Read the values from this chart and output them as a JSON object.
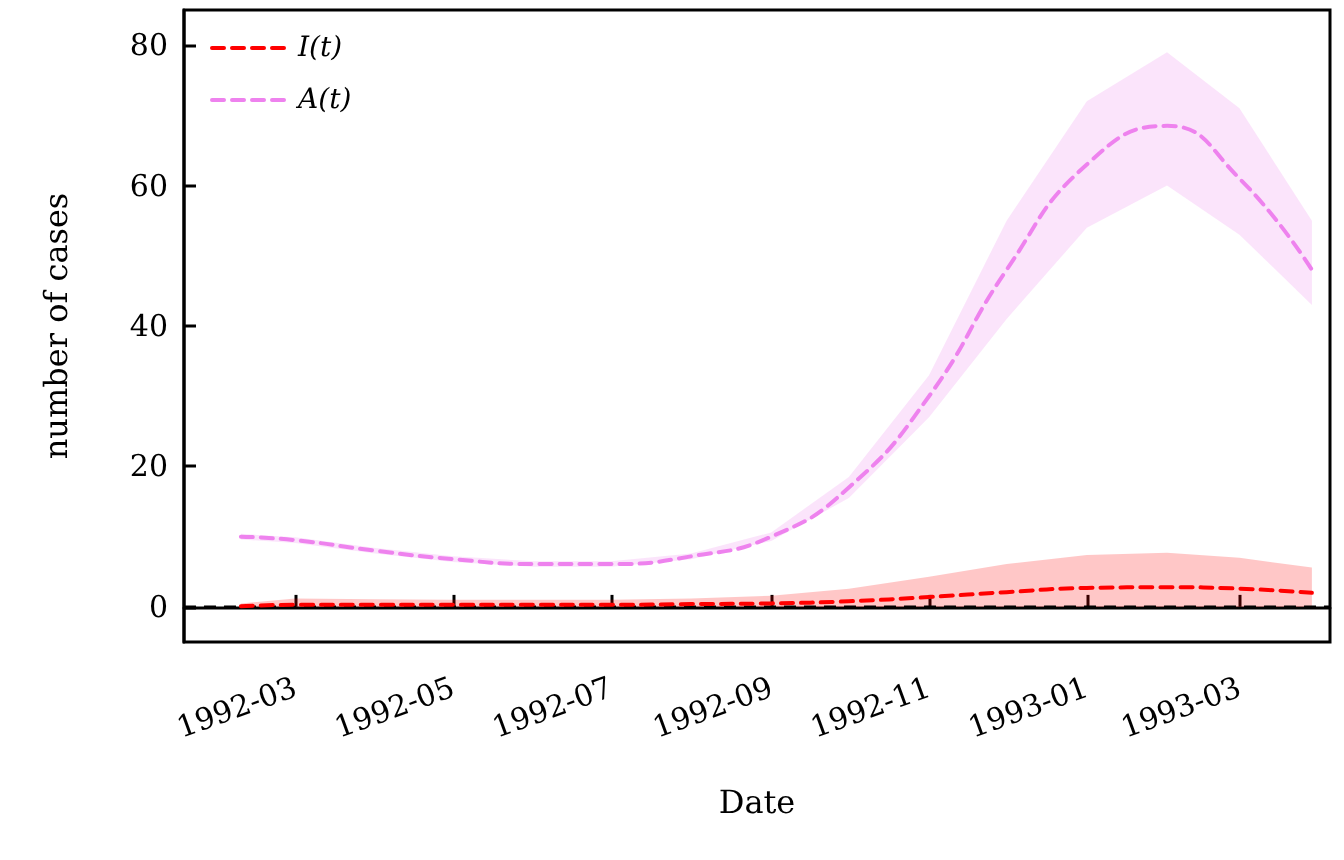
{
  "chart_data": {
    "type": "line",
    "xlabel": "Date",
    "ylabel": "number of cases",
    "x": [
      "1992-02-09",
      "1992-03-01",
      "1992-04-01",
      "1992-05-01",
      "1992-06-01",
      "1992-07-01",
      "1992-08-01",
      "1992-09-01",
      "1992-10-01",
      "1992-11-01",
      "1992-12-01",
      "1993-01-01",
      "1993-02-01",
      "1993-03-01",
      "1993-03-29"
    ],
    "series": [
      {
        "name": "I(t)",
        "color": "#ff0000",
        "values": [
          0.1,
          0.3,
          0.3,
          0.3,
          0.3,
          0.3,
          0.4,
          0.5,
          0.8,
          1.4,
          2.1,
          2.7,
          2.8,
          2.6,
          2.0
        ],
        "lower": [
          0,
          0,
          0,
          0,
          0,
          0,
          0,
          0,
          0,
          0,
          0,
          0,
          0,
          0,
          0
        ],
        "upper": [
          0.5,
          1.2,
          1.1,
          1,
          1,
          1,
          1.2,
          1.6,
          2.6,
          4.3,
          6.1,
          7.4,
          7.7,
          7.0,
          5.6
        ]
      },
      {
        "name": "A(t)",
        "color": "#ee82ee",
        "values": [
          10,
          9.5,
          8,
          6.8,
          6.1,
          6.1,
          7.2,
          10,
          17,
          30,
          48,
          63,
          68.5,
          61,
          48
        ],
        "lower": [
          9.6,
          9.1,
          7.6,
          6.4,
          5.7,
          5.7,
          6.8,
          9.4,
          15.5,
          27,
          41,
          54,
          60,
          53,
          43
        ],
        "upper": [
          10.4,
          9.9,
          8.4,
          7.2,
          6.5,
          6.5,
          7.6,
          10.6,
          18.5,
          33,
          55,
          72,
          79,
          71,
          55
        ]
      }
    ],
    "xlim": [
      "1992-01-18",
      "1993-04-05"
    ],
    "xticks": [
      {
        "value": "1992-03-01",
        "label": "1992-03"
      },
      {
        "value": "1992-05-01",
        "label": "1992-05"
      },
      {
        "value": "1992-07-01",
        "label": "1992-07"
      },
      {
        "value": "1992-09-01",
        "label": "1992-09"
      },
      {
        "value": "1992-11-01",
        "label": "1992-11"
      },
      {
        "value": "1993-01-01",
        "label": "1993-01"
      },
      {
        "value": "1993-03-01",
        "label": "1993-03"
      }
    ],
    "ylim": [
      -5,
      85
    ],
    "yticks": [
      0,
      20,
      40,
      60,
      80
    ],
    "ref_lines": [
      {
        "axis": "y",
        "value": 0,
        "color": "#000000",
        "line_style": "dashed"
      }
    ],
    "grid": false,
    "legend": "top left",
    "line_style": "dashed",
    "marker": "none"
  }
}
